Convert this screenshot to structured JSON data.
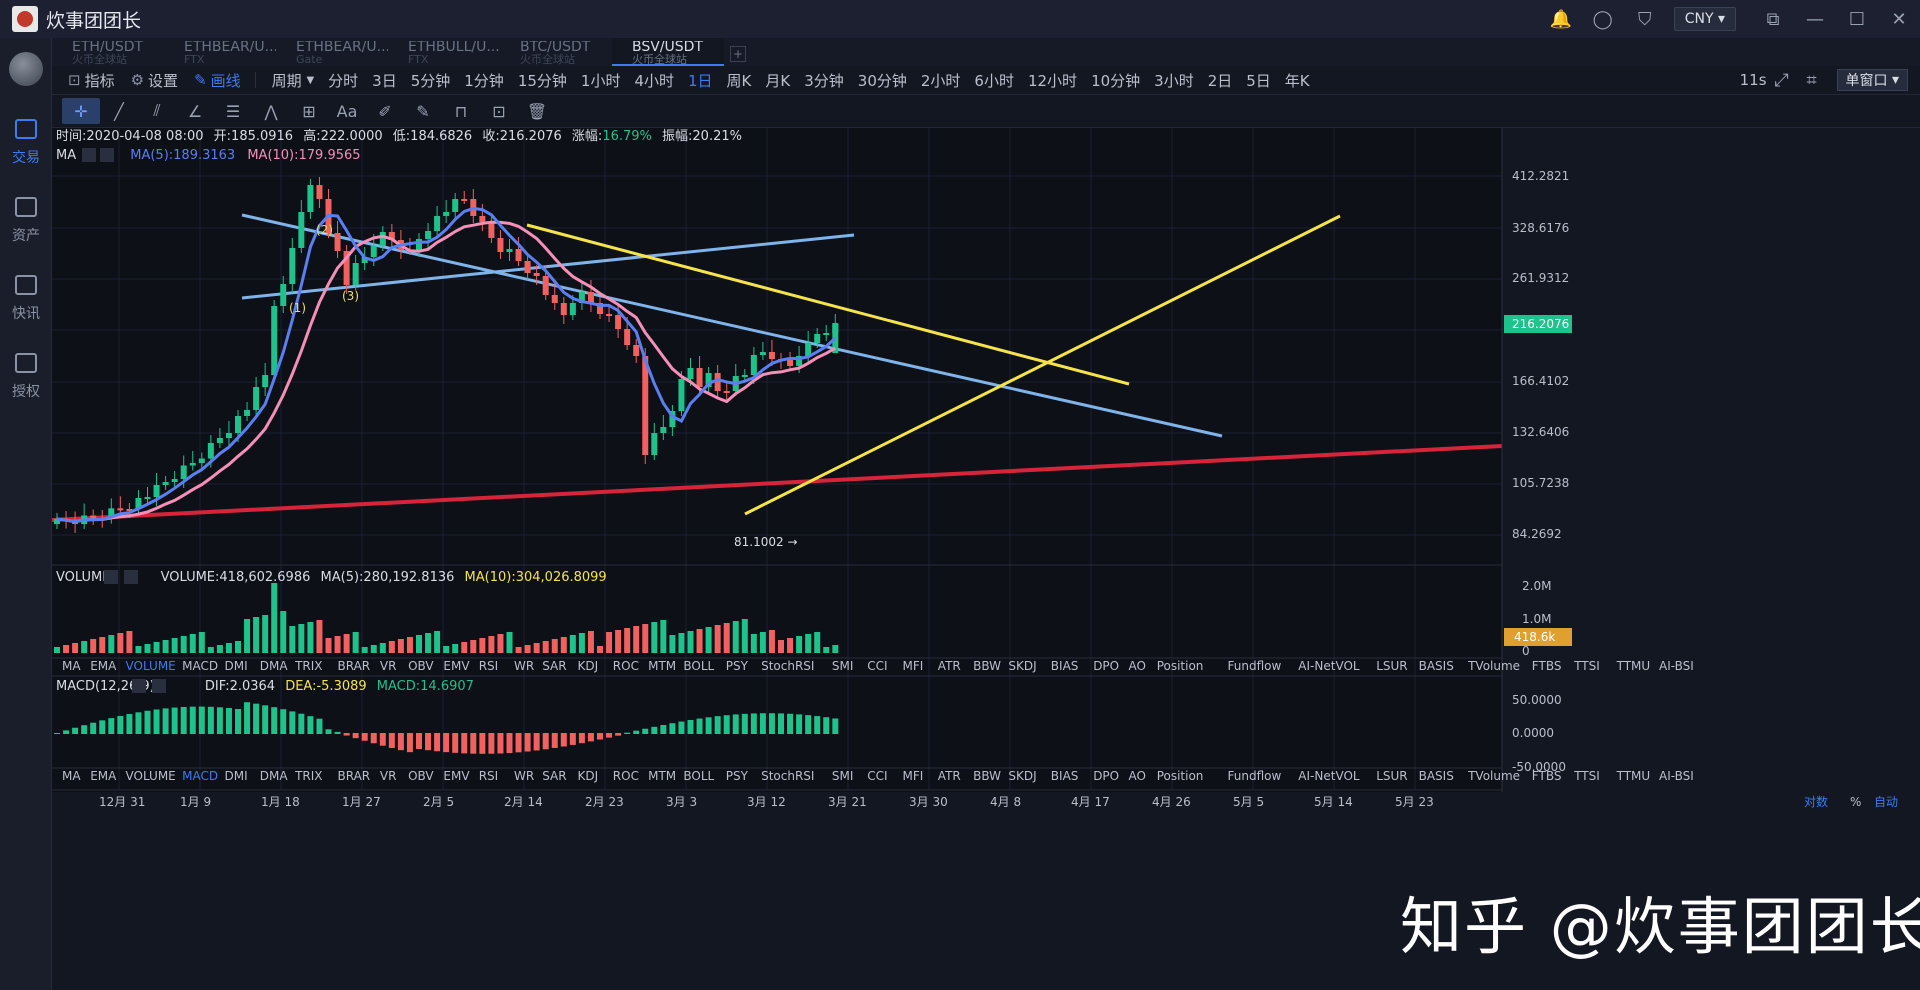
{
  "app": {
    "title": "炊事团团长",
    "currency": "CNY"
  },
  "sidebar": {
    "items": [
      {
        "label": "交易",
        "active": true
      },
      {
        "label": "资产",
        "active": false
      },
      {
        "label": "快讯",
        "active": false
      },
      {
        "label": "授权",
        "active": false
      }
    ]
  },
  "tabs": [
    {
      "pair": "ETH/USDT",
      "exchange": "火币全球站",
      "active": false
    },
    {
      "pair": "ETHBEAR/U...",
      "exchange": "FTX",
      "active": false
    },
    {
      "pair": "ETHBEAR/U...",
      "exchange": "Gate",
      "active": false
    },
    {
      "pair": "ETHBULL/U...",
      "exchange": "FTX",
      "active": false
    },
    {
      "pair": "BTC/USDT",
      "exchange": "火币全球站",
      "active": false
    },
    {
      "pair": "BSV/USDT",
      "exchange": "火币全球站",
      "active": true
    }
  ],
  "toolbar": {
    "indicator": "指标",
    "settings": "设置",
    "draw": "画线",
    "period_label": "周期",
    "periods": [
      "分时",
      "3日",
      "5分钟",
      "1分钟",
      "15分钟",
      "1小时",
      "4小时",
      "1日",
      "周K",
      "月K",
      "3分钟",
      "30分钟",
      "2小时",
      "6小时",
      "12小时",
      "10分钟",
      "3小时",
      "2日",
      "5日",
      "年K"
    ],
    "active_period": "1日",
    "interval": "11s",
    "window_mode": "单窗口"
  },
  "info": {
    "time": "时间:2020-04-08 08:00",
    "open": "开:185.0916",
    "high": "高:222.0000",
    "low": "低:184.6826",
    "close": "收:216.2076",
    "change_label": "涨幅:",
    "change": "16.79%",
    "amplitude": "振幅:20.21%"
  },
  "ma_legend": {
    "name": "MA",
    "ma5": "MA(5):189.3163",
    "ma10": "MA(10):179.9565"
  },
  "volume_legend": {
    "name": "VOLUME",
    "vol": "VOLUME:418,602.6986",
    "ma5": "MA(5):280,192.8136",
    "ma10": "MA(10):304,026.8099"
  },
  "macd_legend": {
    "name": "MACD(12,26,9)",
    "dif": "DIF:2.0364",
    "dea": "DEA:-5.3089",
    "macd": "MACD:14.6907"
  },
  "indicator_tabs": [
    "MA",
    "EMA",
    "VOLUME",
    "MACD",
    "DMI",
    "DMA",
    "TRIX",
    "BRAR",
    "VR",
    "OBV",
    "EMV",
    "RSI",
    "WR",
    "SAR",
    "KDJ",
    "ROC",
    "MTM",
    "BOLL",
    "PSY",
    "StochRSI",
    "SMI",
    "CCI",
    "MFI",
    "ATR",
    "BBW",
    "SKDJ",
    "BIAS",
    "DPO",
    "AO",
    "Position",
    "Fundflow",
    "AI-NetVOL",
    "LSUR",
    "BASIS",
    "TVolume",
    "FTBS",
    "TTSI",
    "TTMU",
    "AI-BSI"
  ],
  "price_axis": [
    "412.2821",
    "328.6176",
    "261.9312",
    "166.4102",
    "132.6406",
    "105.7238",
    "84.2692"
  ],
  "last_price": "216.2076",
  "volume_axis": [
    "2.0M",
    "1.0M",
    "0"
  ],
  "last_volume": "418.6k",
  "macd_axis": [
    "50.0000",
    "0.0000",
    "-50.0000"
  ],
  "date_axis": [
    "12月 31",
    "1月 9",
    "1月 18",
    "1月 27",
    "2月 5",
    "2月 14",
    "2月 23",
    "3月 3",
    "3月 12",
    "3月 21",
    "3月 30",
    "4月 8",
    "4月 17",
    "4月 26",
    "5月 5",
    "5月 14",
    "5月 23"
  ],
  "footer": {
    "log": "对数",
    "percent": "%",
    "auto": "自动"
  },
  "low_annotation": "81.1002 →",
  "wave_labels": [
    "(1)",
    "(2)",
    "(3)"
  ],
  "colors": {
    "up": "#1ec28b",
    "down": "#f0615f",
    "ma5": "#5b7ff0",
    "ma10": "#f58fb8",
    "blue_line": "#7fb4ea",
    "yellow_line": "#f5e34a",
    "red_line": "#d8243a",
    "accent": "#3d7bf0"
  },
  "watermark": "知乎 @炊事团团长"
}
